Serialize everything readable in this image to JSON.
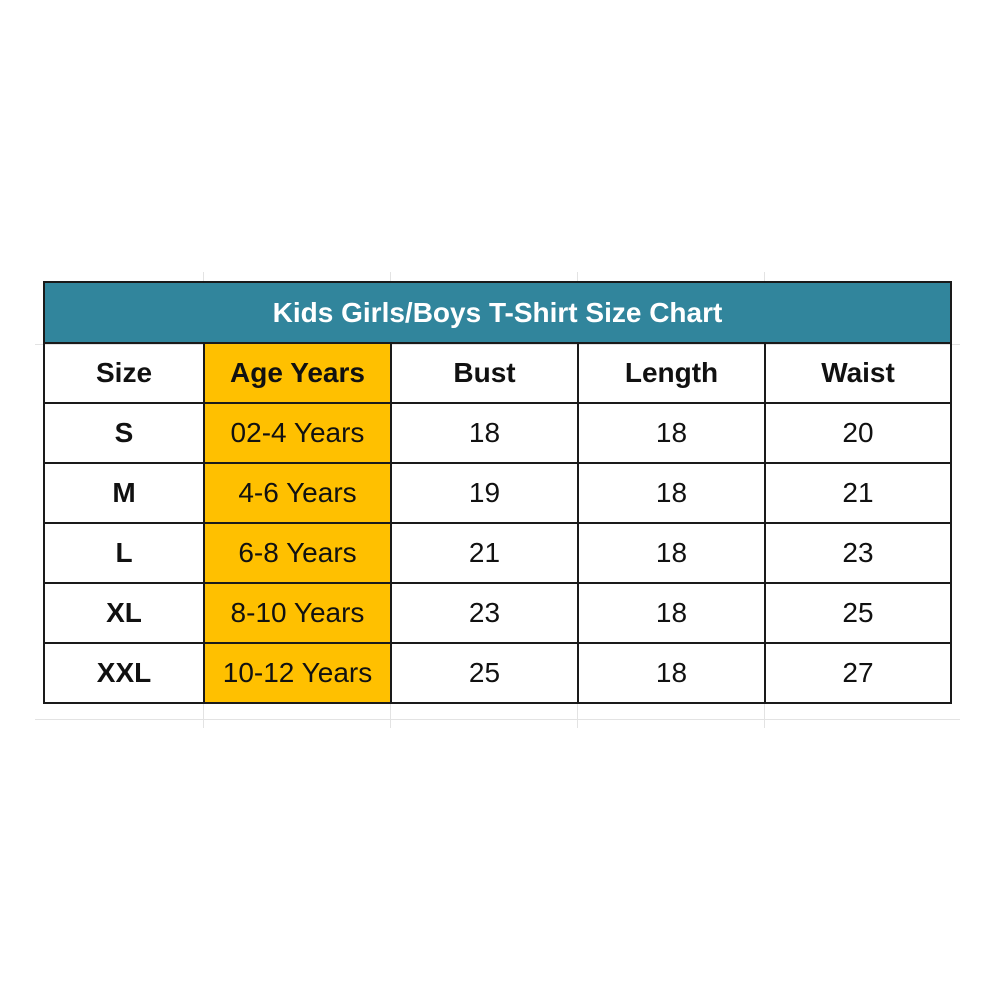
{
  "title": "Kids Girls/Boys T-Shirt Size Chart",
  "colors": {
    "title_bg": "#31859C",
    "age_column_bg": "#FFC000"
  },
  "headers": [
    "Size",
    "Age Years",
    "Bust",
    "Length",
    "Waist"
  ],
  "rows": [
    [
      "S",
      "02-4 Years",
      "18",
      "18",
      "20"
    ],
    [
      "M",
      "4-6 Years",
      "19",
      "18",
      "21"
    ],
    [
      "L",
      "6-8 Years",
      "21",
      "18",
      "23"
    ],
    [
      "XL",
      "8-10 Years",
      "23",
      "18",
      "25"
    ],
    [
      "XXL",
      "10-12 Years",
      "25",
      "18",
      "27"
    ]
  ]
}
